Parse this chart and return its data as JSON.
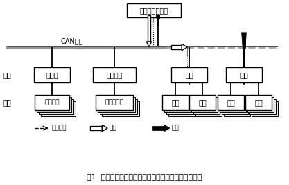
{
  "title": "图1  火灾报警控制系统结构及楼层显示器所在位置显示",
  "controller_label": "火灾报警控制器",
  "can_bus_label": "CAN总线",
  "dan_yuan_label": "单元",
  "mo_kuai_label": "模块",
  "unit_boxes": [
    "专线盘",
    "转接模块",
    "回路",
    "回路"
  ],
  "module_boxes": [
    "联动装置",
    "楼层显示器",
    "模块",
    "探头",
    "模块",
    "探头"
  ],
  "legend_labels": [
    "非火命令",
    "巡检",
    "火警"
  ],
  "bg_color": "#ffffff"
}
